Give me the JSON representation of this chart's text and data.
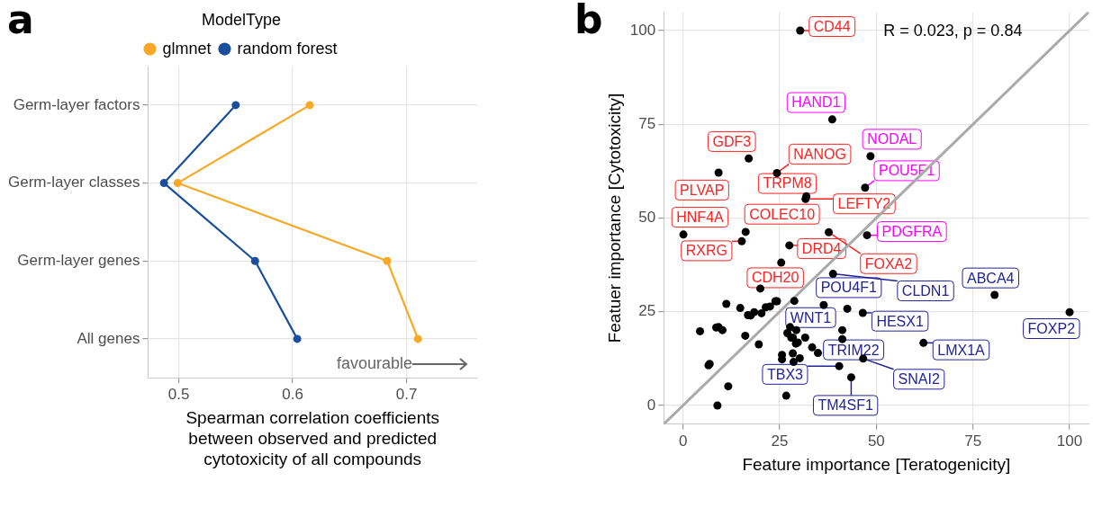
{
  "chart_data": [
    {
      "type": "line",
      "title": "a",
      "orientation": "horizontal",
      "categories": [
        "Germ-layer factors",
        "Germ-layer classes",
        "Germ-layer genes",
        "All genes"
      ],
      "series": [
        {
          "name": "glmnet",
          "color": "#f9a825",
          "values": [
            0.615,
            0.499,
            0.683,
            0.71
          ]
        },
        {
          "name": "random forest",
          "color": "#1a4f9c",
          "values": [
            0.55,
            0.487,
            0.567,
            0.604
          ]
        }
      ],
      "xlabel": "Spearman correlation coefficients between observed and predicted cytotoxicity of all compounds",
      "xlim": [
        0.473,
        0.762
      ],
      "xticks": [
        0.5,
        0.6,
        0.7
      ],
      "legend": "top",
      "legend_title": "ModelType",
      "marker": "circle",
      "grid": true,
      "annotations": [
        "favourable"
      ]
    },
    {
      "type": "scatter",
      "title": "b",
      "xlabel": "Feature importance [Teratogenicity]",
      "ylabel": "Featuer importance [Cytotoxicity]",
      "xlim": [
        -5,
        105
      ],
      "ylim": [
        -5,
        105
      ],
      "xticks": [
        0,
        25,
        50,
        75,
        100
      ],
      "yticks": [
        0,
        25,
        50,
        75,
        100
      ],
      "grid": true,
      "marker": "circle",
      "series": [
        {
          "type": "line",
          "color": "#aaaaaa",
          "marker": "none",
          "x": [
            -5,
            105
          ],
          "values": [
            -5,
            105
          ]
        },
        {
          "color": "#000000",
          "x": [
            30.3,
            38.6,
            17.0,
            48.5,
            9.2,
            24.3,
            47.1,
            31.9,
            31.7,
            0.1,
            16.2,
            37.7,
            47.6,
            15.2,
            27.5,
            25.4,
            38.8,
            20.0,
            80.6,
            100,
            11.2,
            14.8,
            23.9,
            24.3,
            28.8,
            21.4,
            22.5,
            36.4,
            42.5,
            46.5,
            16.8,
            17.5,
            18.4,
            20.3,
            4.4,
            8.6,
            9.2,
            10.2,
            16.1,
            27.7,
            27.0,
            29.3,
            28.0,
            28.4,
            29.2,
            29.7,
            31.6,
            41.2,
            41.2,
            62.2,
            19.6,
            33.4,
            34.9,
            25.6,
            25.6,
            28.4,
            28.6,
            30.2,
            46.6,
            40.4,
            6.9,
            6.6,
            43.5,
            11.7,
            26.7,
            8.9
          ],
          "values": [
            100,
            76.3,
            65.9,
            66.5,
            62.1,
            62.0,
            58.1,
            55.8,
            55.1,
            45.6,
            46.3,
            46.2,
            45.4,
            43.8,
            42.7,
            38.1,
            35.1,
            31.2,
            29.5,
            24.9,
            27.1,
            26.0,
            27.8,
            27.8,
            27.9,
            26.2,
            26.4,
            26.8,
            25.8,
            24.7,
            24.1,
            24.0,
            24.9,
            24.6,
            19.8,
            20.8,
            20.9,
            20.1,
            18.6,
            20.9,
            19.3,
            20.1,
            18.1,
            18.1,
            16.5,
            16.8,
            18.1,
            20.1,
            17.7,
            16.7,
            16.3,
            15.5,
            14.0,
            13.5,
            12.3,
            13.9,
            11.6,
            12.6,
            12.5,
            10.5,
            11.1,
            10.7,
            7.5,
            5.1,
            2.6,
            0
          ]
        }
      ],
      "annotations": [
        {
          "text": "CD44",
          "x": 30.3,
          "y": 100
        },
        {
          "text": "HAND1",
          "x": 38.6,
          "y": 76.3
        },
        {
          "text": "GDF3",
          "x": 17.0,
          "y": 65.9
        },
        {
          "text": "NANOG",
          "x": 24.3,
          "y": 62.0
        },
        {
          "text": "NODAL",
          "x": 48.5,
          "y": 66.5
        },
        {
          "text": "POU5F1",
          "x": 47.1,
          "y": 58.1
        },
        {
          "text": "PLVAP",
          "x": 9.2,
          "y": 62.1
        },
        {
          "text": "TRPM8",
          "x": 31.9,
          "y": 55.8
        },
        {
          "text": "LEFTY2",
          "x": 31.7,
          "y": 55.1
        },
        {
          "text": "HNF4A",
          "x": 0.1,
          "y": 45.6
        },
        {
          "text": "COLEC10",
          "x": 16.2,
          "y": 46.3
        },
        {
          "text": "PDGFRA",
          "x": 47.6,
          "y": 45.4
        },
        {
          "text": "RXRG",
          "x": 15.2,
          "y": 43.8
        },
        {
          "text": "DRD4",
          "x": 27.5,
          "y": 42.7
        },
        {
          "text": "FOXA2",
          "x": 37.7,
          "y": 46.2
        },
        {
          "text": "CDH20",
          "x": 20.0,
          "y": 31.2
        },
        {
          "text": "POU4F1",
          "x": 36.4,
          "y": 26.8
        },
        {
          "text": "CLDN1",
          "x": 38.8,
          "y": 35.1
        },
        {
          "text": "ABCA4",
          "x": 80.6,
          "y": 29.5
        },
        {
          "text": "FOXP2",
          "x": 100,
          "y": 24.9
        },
        {
          "text": "HESX1",
          "x": 46.5,
          "y": 24.7
        },
        {
          "text": "WNT1",
          "x": 27.7,
          "y": 20.9
        },
        {
          "text": "LMX1A",
          "x": 62.2,
          "y": 16.7
        },
        {
          "text": "TRIM22",
          "x": 41.2,
          "y": 17.7
        },
        {
          "text": "TBX3",
          "x": 40.4,
          "y": 10.5
        },
        {
          "text": "SNAI2",
          "x": 46.6,
          "y": 12.5
        },
        {
          "text": "TM4SF1",
          "x": 43.5,
          "y": 7.5
        },
        "R = 0.023, p = 0.84"
      ]
    }
  ]
}
